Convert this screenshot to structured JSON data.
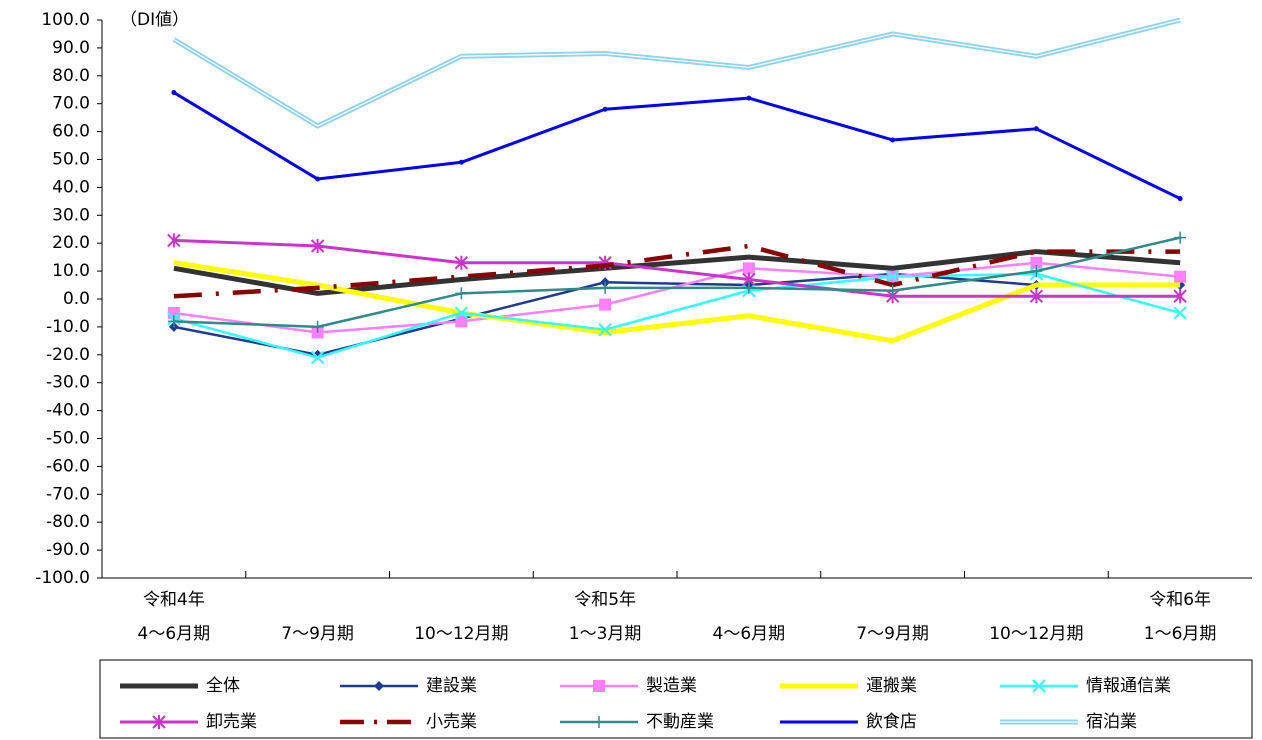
{
  "chart_data": {
    "type": "line",
    "unit_label": "（DI値）",
    "categories": [
      "4〜6月期",
      "7〜9月期",
      "10〜12月期",
      "1〜3月期",
      "4〜6月期",
      "7〜9月期",
      "10〜12月期",
      "1〜6月期"
    ],
    "era_labels": [
      "令和4年",
      null,
      null,
      "令和5年",
      null,
      null,
      null,
      "令和6年"
    ],
    "ylim": [
      -100,
      100
    ],
    "yticks": [
      {
        "value": 100,
        "label": "100.0"
      },
      {
        "value": 90,
        "label": "90.0"
      },
      {
        "value": 80,
        "label": "80.0"
      },
      {
        "value": 70,
        "label": "70.0"
      },
      {
        "value": 60,
        "label": "60.0"
      },
      {
        "value": 50,
        "label": "50.0"
      },
      {
        "value": 40,
        "label": "40.0"
      },
      {
        "value": 30,
        "label": "30.0"
      },
      {
        "value": 20,
        "label": "20.0"
      },
      {
        "value": 10,
        "label": "10.0"
      },
      {
        "value": 0,
        "label": "0.0"
      },
      {
        "value": -10,
        "label": "-10.0"
      },
      {
        "value": -20,
        "label": "-20.0"
      },
      {
        "value": -30,
        "label": "-30.0"
      },
      {
        "value": -40,
        "label": "-40.0"
      },
      {
        "value": -50,
        "label": "-50.0"
      },
      {
        "value": -60,
        "label": "-60.0"
      },
      {
        "value": -70,
        "label": "-70.0"
      },
      {
        "value": -80,
        "label": "-80.0"
      },
      {
        "value": -90,
        "label": "-90.0"
      },
      {
        "value": -100,
        "label": "-100.0"
      }
    ],
    "grid": false,
    "legend": "bottom",
    "series": [
      {
        "name": "全体",
        "color": "#333333",
        "marker": "none",
        "values": [
          11,
          2,
          7,
          11,
          15,
          11,
          17,
          13
        ]
      },
      {
        "name": "建設業",
        "color": "#1f3a93",
        "marker": "diamond",
        "values": [
          -10,
          -20,
          -7,
          6,
          5,
          9,
          5,
          5
        ]
      },
      {
        "name": "製造業",
        "color": "#ff80ff",
        "marker": "square",
        "values": [
          -5,
          -12,
          -8,
          -2,
          11,
          8,
          13,
          8
        ]
      },
      {
        "name": "運搬業",
        "color": "#ffff00",
        "marker": "none",
        "values": [
          13,
          5,
          -5,
          -12,
          -6,
          -15,
          5,
          5
        ]
      },
      {
        "name": "情報通信業",
        "color": "#33ffff",
        "marker": "x",
        "values": [
          -7,
          -21,
          -5,
          -11,
          3,
          8,
          9,
          -5
        ]
      },
      {
        "name": "卸売業",
        "color": "#cc33cc",
        "marker": "asterisk",
        "values": [
          21,
          19,
          13,
          13,
          7,
          1,
          1,
          1
        ]
      },
      {
        "name": "小売業",
        "color": "#8b0000",
        "marker": "none",
        "values": [
          1,
          4,
          8,
          12,
          19,
          5,
          17,
          17
        ]
      },
      {
        "name": "不動産業",
        "color": "#2e8b8b",
        "marker": "plus",
        "values": [
          -8,
          -10,
          2,
          4,
          4,
          3,
          10,
          22
        ]
      },
      {
        "name": "飲食店",
        "color": "#0000ff",
        "marker": "dot",
        "values": [
          74,
          43,
          49,
          68,
          72,
          57,
          61,
          36
        ]
      },
      {
        "name": "宿泊業",
        "color": "#8fd3f0",
        "marker": "none",
        "values": [
          93,
          62,
          87,
          88,
          83,
          95,
          87,
          100
        ]
      }
    ]
  }
}
